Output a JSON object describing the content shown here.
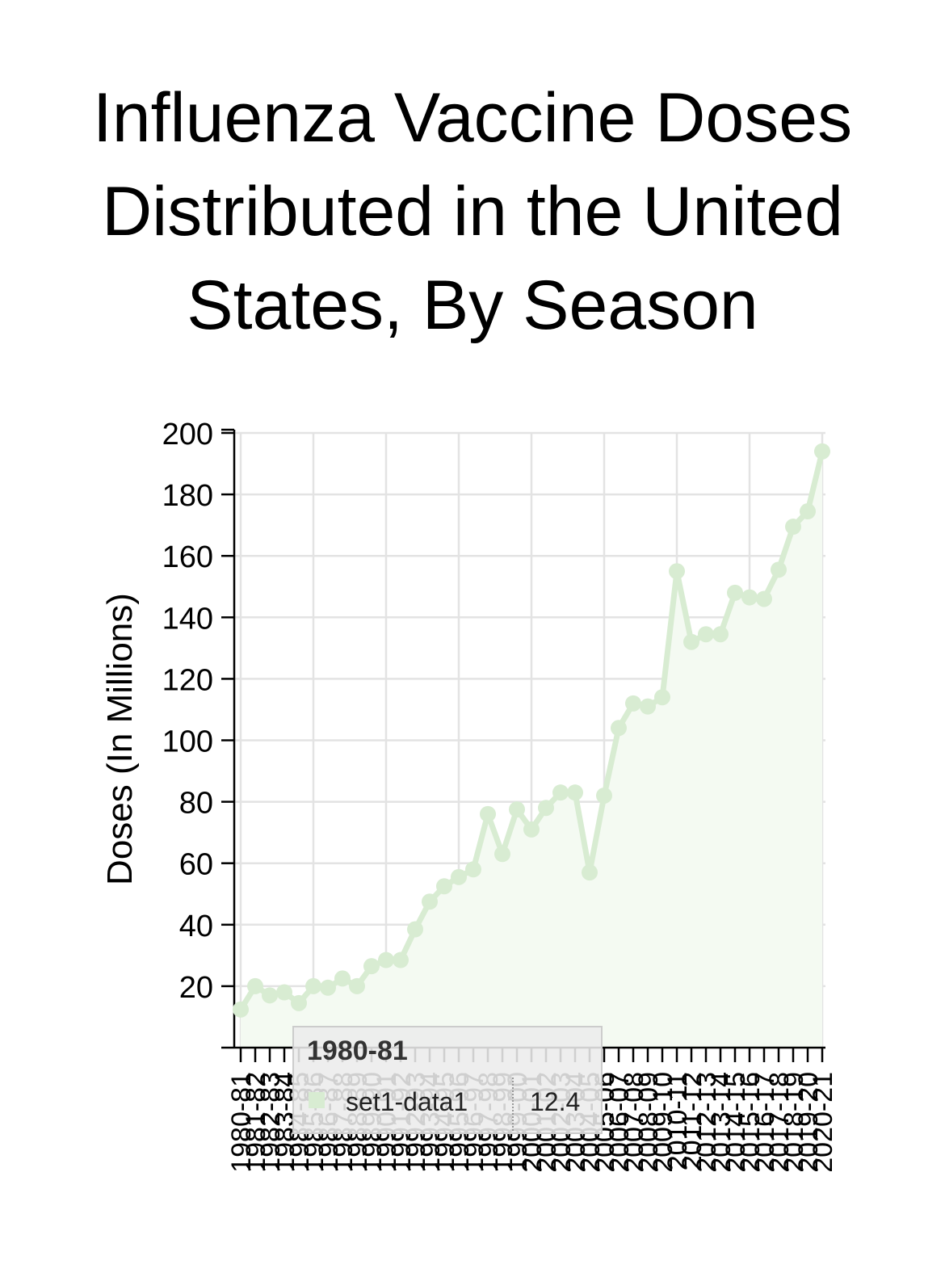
{
  "chart_data": {
    "type": "area",
    "title_lines": [
      "Influenza Vaccine Doses",
      "Distributed in the United",
      "States, By Season"
    ],
    "ylabel": "Doses (In Millions)",
    "xlabel": "",
    "ylim": [
      0,
      200
    ],
    "yticks": [
      20,
      40,
      60,
      80,
      100,
      120,
      140,
      160,
      180,
      200
    ],
    "grid": true,
    "categories": [
      "1980-81",
      "1981-82",
      "1982-83",
      "1983-84",
      "1984-85",
      "1985-86",
      "1986-87",
      "1987-88",
      "1988-89",
      "1989-90",
      "1990-91",
      "1991-92",
      "1992-93",
      "1993-94",
      "1994-95",
      "1995-96",
      "1996-97",
      "1997-98",
      "1998-99",
      "1999-00",
      "2000-01",
      "2001-02",
      "2002-03",
      "2003-04",
      "2004-05",
      "2005-06",
      "2006-07",
      "2007-08",
      "2008-09",
      "2009-10",
      "2010-11",
      "2011-12",
      "2012-13",
      "2013-14",
      "2014-15",
      "2015-16",
      "2016-17",
      "2017-18",
      "2018-19",
      "2019-20",
      "2020-21"
    ],
    "series": [
      {
        "name": "set1-data1",
        "color": "#d8ecd2",
        "fill": "#f4faf2",
        "values": [
          12.4,
          20.0,
          17.0,
          18.0,
          14.5,
          20.0,
          19.5,
          22.5,
          20.0,
          26.5,
          28.5,
          28.5,
          38.5,
          47.5,
          52.5,
          55.5,
          58.0,
          76.0,
          63.0,
          77.5,
          71.0,
          78.0,
          83.0,
          83.0,
          57.0,
          82.0,
          104.0,
          112.0,
          111.0,
          114.0,
          155.0,
          132.0,
          134.5,
          134.5,
          148.0,
          146.5,
          146.0,
          155.5,
          169.5,
          174.5,
          194.0
        ]
      }
    ],
    "tooltip": {
      "header": "1980-81",
      "series_name": "set1-data1",
      "value": "12.4"
    }
  }
}
